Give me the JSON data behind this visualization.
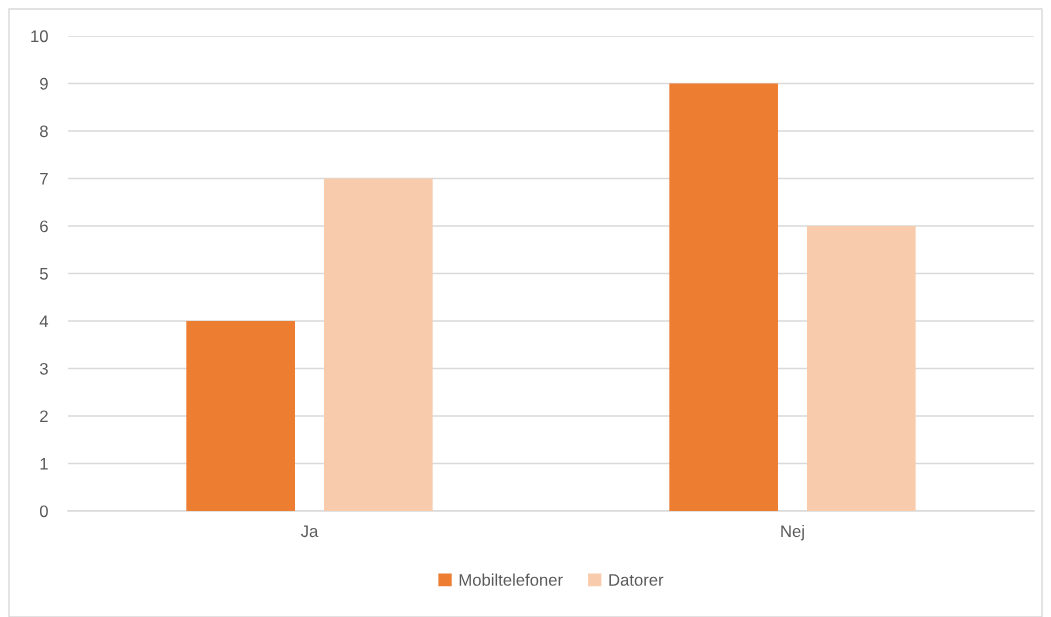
{
  "chart_data": {
    "type": "bar",
    "categories": [
      "Ja",
      "Nej"
    ],
    "series": [
      {
        "name": "Mobiltelefoner",
        "color": "#ed7d31",
        "values": [
          4,
          9
        ]
      },
      {
        "name": "Datorer",
        "color": "#f8cbad",
        "values": [
          7,
          6
        ]
      }
    ],
    "ylim": [
      0,
      10
    ],
    "yticks": [
      0,
      1,
      2,
      3,
      4,
      5,
      6,
      7,
      8,
      9,
      10
    ],
    "grid": "y",
    "legend": "bottom"
  }
}
